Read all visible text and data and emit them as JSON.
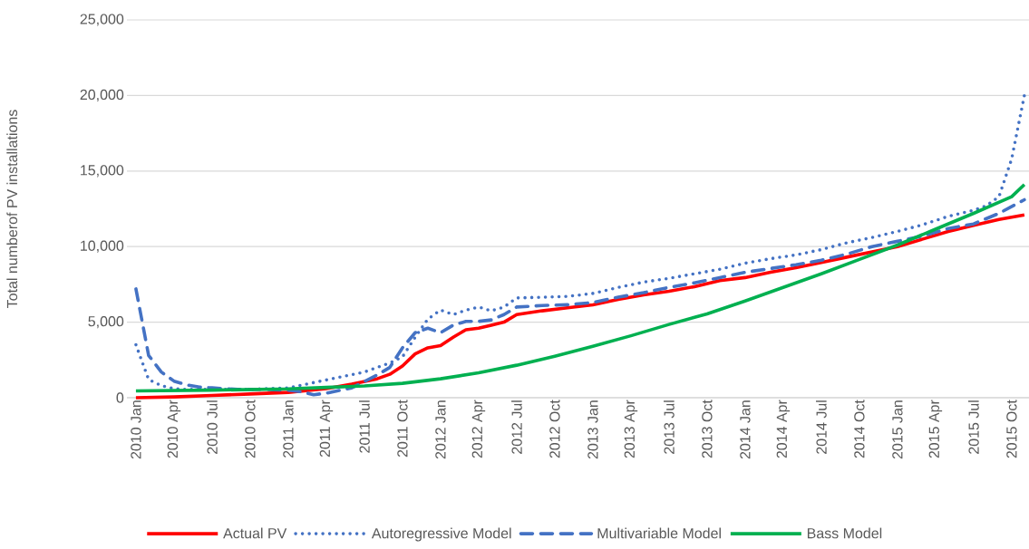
{
  "chart_data": {
    "type": "line",
    "ylabel": "Total numberof PV installations",
    "xlim": [
      "2009-12-10",
      "2015-11-12"
    ],
    "ylim": [
      0,
      25000
    ],
    "yticks": [
      0,
      {
        "value": 5000,
        "label": "5,000"
      },
      {
        "value": 10000,
        "label": "10,000"
      },
      {
        "value": 15000,
        "label": "15,000"
      },
      {
        "value": 20000,
        "label": "20,000"
      },
      {
        "value": 25000,
        "label": "25,000"
      }
    ],
    "xticks": [
      {
        "value": "2010-01",
        "label": "2010 Jan"
      },
      {
        "value": "2010-04",
        "label": "2010 Apr"
      },
      {
        "value": "2010-07",
        "label": "2010 Jul"
      },
      {
        "value": "2010-10",
        "label": "2010 Oct"
      },
      {
        "value": "2011-01",
        "label": "2011 Jan"
      },
      {
        "value": "2011-04",
        "label": "2011 Apr"
      },
      {
        "value": "2011-07",
        "label": "2011 Jul"
      },
      {
        "value": "2011-10",
        "label": "2011 Oct"
      },
      {
        "value": "2012-01",
        "label": "2012 Jan"
      },
      {
        "value": "2012-04",
        "label": "2012 Apr"
      },
      {
        "value": "2012-07",
        "label": "2012 Jul"
      },
      {
        "value": "2012-10",
        "label": "2012 Oct"
      },
      {
        "value": "2013-01",
        "label": "2013 Jan"
      },
      {
        "value": "2013-04",
        "label": "2013 Apr"
      },
      {
        "value": "2013-07",
        "label": "2013 Jul"
      },
      {
        "value": "2013-10",
        "label": "2013 Oct"
      },
      {
        "value": "2014-01",
        "label": "2014 Jan"
      },
      {
        "value": "2014-04",
        "label": "2014 Apr"
      },
      {
        "value": "2014-07",
        "label": "2014 Jul"
      },
      {
        "value": "2014-10",
        "label": "2014 Oct"
      },
      {
        "value": "2015-01",
        "label": "2015 Jan"
      },
      {
        "value": "2015-04",
        "label": "2015 Apr"
      },
      {
        "value": "2015-07",
        "label": "2015 Jul"
      },
      {
        "value": "2015-10",
        "label": "2015 Oct"
      }
    ],
    "grid": "y",
    "legend": "bottom",
    "marker": "none",
    "series": [
      {
        "name": "Actual PV",
        "color": "#ff0000",
        "line_style": "solid",
        "x": [
          "2010-01",
          "2010-04",
          "2010-07",
          "2010-10",
          "2011-01",
          "2011-04",
          "2011-06",
          "2011-08",
          "2011-09",
          "2011-10",
          "2011-11",
          "2011-12",
          "2012-01",
          "2012-02",
          "2012-03",
          "2012-04",
          "2012-05",
          "2012-06",
          "2012-07",
          "2012-09",
          "2012-11",
          "2013-01",
          "2013-03",
          "2013-05",
          "2013-07",
          "2013-09",
          "2013-11",
          "2014-01",
          "2014-03",
          "2014-05",
          "2014-07",
          "2014-09",
          "2014-11",
          "2015-01",
          "2015-03",
          "2015-05",
          "2015-07",
          "2015-09",
          "2015-11"
        ],
        "values": [
          0,
          50,
          150,
          250,
          350,
          600,
          900,
          1250,
          1550,
          2100,
          2900,
          3300,
          3450,
          4000,
          4500,
          4600,
          4800,
          5000,
          5500,
          5750,
          5950,
          6150,
          6500,
          6800,
          7050,
          7350,
          7750,
          7950,
          8300,
          8600,
          8950,
          9300,
          9650,
          10000,
          10500,
          11000,
          11400,
          11800,
          12100
        ]
      },
      {
        "name": "Autoregressive Model",
        "color": "#4472c4",
        "line_style": "dotted",
        "x": [
          "2010-01",
          "2010-02",
          "2010-03",
          "2010-04",
          "2010-05",
          "2010-07",
          "2010-10",
          "2011-01",
          "2011-03",
          "2011-05",
          "2011-07",
          "2011-09",
          "2011-10",
          "2011-11",
          "2011-12",
          "2012-01",
          "2012-02",
          "2012-03",
          "2012-04",
          "2012-05",
          "2012-06",
          "2012-07",
          "2012-09",
          "2012-11",
          "2013-01",
          "2013-03",
          "2013-05",
          "2013-07",
          "2013-09",
          "2013-11",
          "2014-01",
          "2014-03",
          "2014-05",
          "2014-07",
          "2014-09",
          "2014-11",
          "2015-01",
          "2015-03",
          "2015-05",
          "2015-07",
          "2015-08",
          "2015-09",
          "2015-10",
          "2015-11"
        ],
        "values": [
          3500,
          1200,
          800,
          600,
          550,
          550,
          550,
          650,
          1000,
          1350,
          1700,
          2300,
          2700,
          4000,
          5200,
          5800,
          5500,
          5800,
          6000,
          5750,
          6000,
          6600,
          6650,
          6700,
          6900,
          7300,
          7650,
          7900,
          8200,
          8500,
          8900,
          9200,
          9450,
          9800,
          10250,
          10600,
          11000,
          11450,
          12000,
          12400,
          12700,
          13300,
          15800,
          20000
        ]
      },
      {
        "name": "Multivariable Model",
        "color": "#4472c4",
        "line_style": "dashed",
        "x": [
          "2010-01",
          "2010-02",
          "2010-03",
          "2010-04",
          "2010-05",
          "2010-06",
          "2010-07",
          "2010-09",
          "2010-11",
          "2011-01",
          "2011-02",
          "2011-03",
          "2011-04",
          "2011-06",
          "2011-08",
          "2011-09",
          "2011-10",
          "2011-11",
          "2011-12",
          "2012-01",
          "2012-02",
          "2012-03",
          "2012-04",
          "2012-05",
          "2012-06",
          "2012-07",
          "2012-09",
          "2012-11",
          "2013-01",
          "2013-03",
          "2013-05",
          "2013-07",
          "2013-09",
          "2013-11",
          "2014-01",
          "2014-03",
          "2014-05",
          "2014-07",
          "2014-09",
          "2014-11",
          "2015-01",
          "2015-03",
          "2015-05",
          "2015-07",
          "2015-09",
          "2015-11"
        ],
        "values": [
          7200,
          2800,
          1700,
          1100,
          850,
          700,
          650,
          550,
          550,
          500,
          400,
          200,
          300,
          650,
          1500,
          2000,
          3300,
          4300,
          4600,
          4300,
          4800,
          5050,
          5050,
          5150,
          5500,
          6000,
          6100,
          6150,
          6300,
          6650,
          6950,
          7300,
          7600,
          7950,
          8300,
          8550,
          8800,
          9100,
          9500,
          10000,
          10350,
          10700,
          11200,
          11500,
          12200,
          13100
        ]
      },
      {
        "name": "Bass Model",
        "color": "#00b050",
        "line_style": "solid",
        "x": [
          "2010-01",
          "2010-07",
          "2011-01",
          "2011-04",
          "2011-07",
          "2011-10",
          "2012-01",
          "2012-04",
          "2012-07",
          "2012-10",
          "2013-01",
          "2013-04",
          "2013-07",
          "2013-10",
          "2014-01",
          "2014-04",
          "2014-07",
          "2014-10",
          "2015-01",
          "2015-04",
          "2015-07",
          "2015-10",
          "2015-11"
        ],
        "values": [
          450,
          500,
          580,
          680,
          780,
          950,
          1250,
          1650,
          2150,
          2750,
          3400,
          4100,
          4850,
          5550,
          6400,
          7300,
          8200,
          9150,
          10100,
          11150,
          12200,
          13300,
          14100
        ]
      }
    ]
  }
}
